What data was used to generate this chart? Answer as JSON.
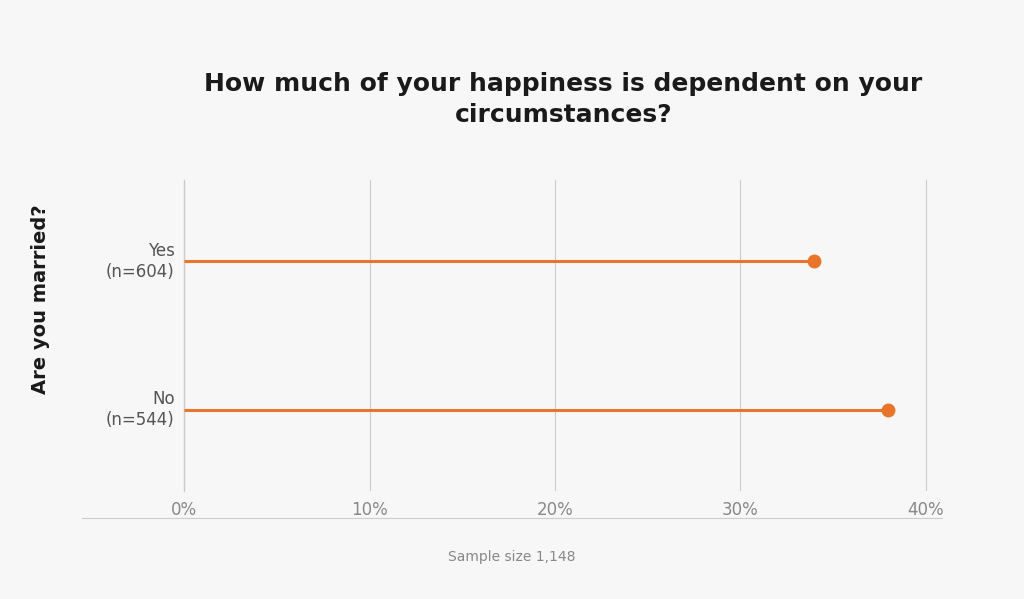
{
  "title": "How much of your happiness is dependent on your\ncircumstances?",
  "ylabel": "Are you married?",
  "xlabel_note": "Sample size 1,148",
  "categories": [
    "Yes\n(n=604)",
    "No\n(n=544)"
  ],
  "values": [
    0.34,
    0.38
  ],
  "line_color": "#E8752A",
  "dot_color": "#E8752A",
  "xlim": [
    0.0,
    0.42
  ],
  "xticks": [
    0.0,
    0.1,
    0.2,
    0.3,
    0.4
  ],
  "xticklabels": [
    "0%",
    "10%",
    "20%",
    "30%",
    "40%"
  ],
  "outer_bg_color": "#EBEBEB",
  "card_bg_color": "#F7F7F7",
  "grid_color": "#CCCCCC",
  "title_fontsize": 18,
  "axis_label_fontsize": 14,
  "tick_fontsize": 12,
  "note_fontsize": 10,
  "title_color": "#1A1A1A",
  "label_color": "#1A1A1A",
  "tick_color": "#888888",
  "ytick_color": "#555555"
}
